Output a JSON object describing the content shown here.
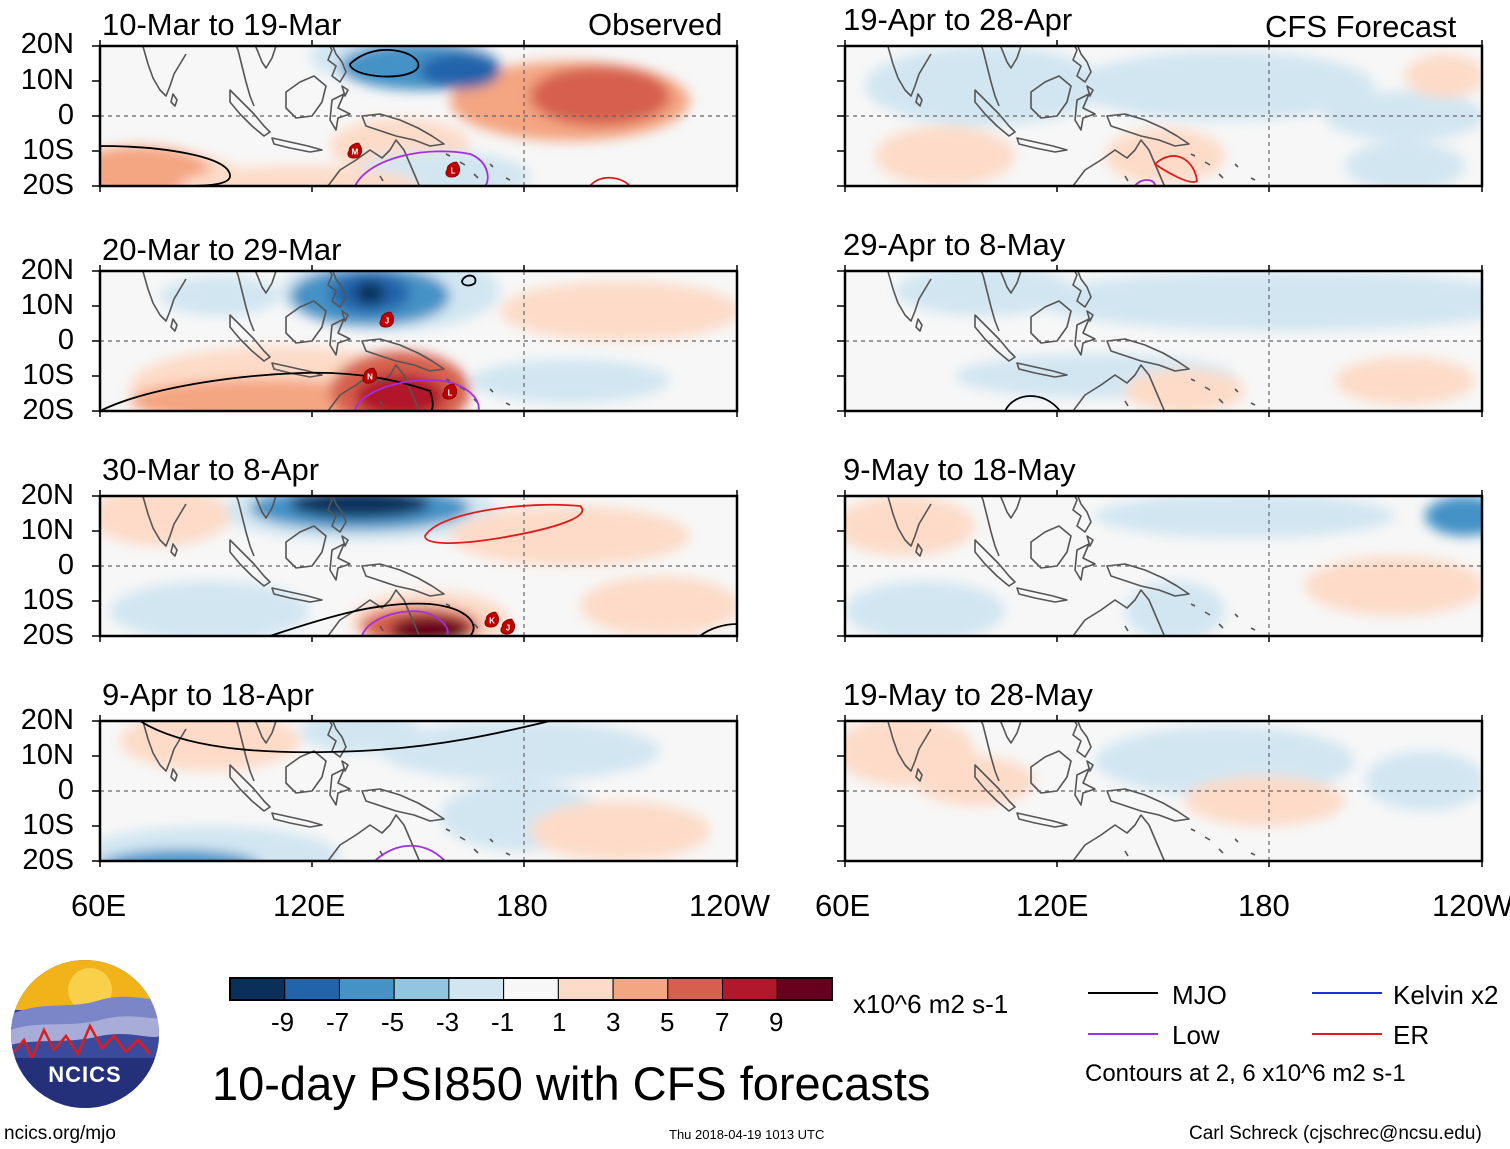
{
  "headers": {
    "observed": "Observed",
    "forecast": "CFS Forecast"
  },
  "panels": [
    {
      "id": "p1",
      "title": "10-Mar to 19-Mar",
      "column": "observed"
    },
    {
      "id": "p2",
      "title": "20-Mar to 29-Mar",
      "column": "observed"
    },
    {
      "id": "p3",
      "title": "30-Mar to 8-Apr",
      "column": "observed"
    },
    {
      "id": "p4",
      "title": "9-Apr to 18-Apr",
      "column": "observed"
    },
    {
      "id": "p5",
      "title": "19-Apr to 28-Apr",
      "column": "forecast"
    },
    {
      "id": "p6",
      "title": "29-Apr to 8-May",
      "column": "forecast"
    },
    {
      "id": "p7",
      "title": "9-May to 18-May",
      "column": "forecast"
    },
    {
      "id": "p8",
      "title": "19-May to 28-May",
      "column": "forecast"
    }
  ],
  "lat_labels": [
    "20N",
    "10N",
    "0",
    "10S",
    "20S"
  ],
  "lon_labels": [
    "60E",
    "120E",
    "180",
    "120W"
  ],
  "colorbar": {
    "colors": [
      "#08305b",
      "#2164ab",
      "#4592c6",
      "#92c5df",
      "#d2e6f2",
      "#f7f7f7",
      "#fddbc8",
      "#f4a582",
      "#d6604d",
      "#b2182b",
      "#67001f"
    ],
    "labels": [
      "-9",
      "-7",
      "-5",
      "-3",
      "-1",
      "1",
      "3",
      "5",
      "7",
      "9"
    ],
    "units": "x10^6 m2 s-1"
  },
  "legend": {
    "items": [
      {
        "label": "MJO",
        "color": "#000000"
      },
      {
        "label": "Kelvin x2",
        "color": "#1f2fd6"
      },
      {
        "label": "Low",
        "color": "#a02fe0"
      },
      {
        "label": "ER",
        "color": "#e01b1b"
      }
    ],
    "contours_note": "Contours at 2, 6 x10^6 m2 s-1"
  },
  "main_title": "10-day PSI850 with CFS forecasts",
  "logo_text": "NCICS",
  "footer": {
    "url": "ncics.org/mjo",
    "timestamp": "Thu 2018-04-19 1013 UTC",
    "credit": "Carl Schreck (cjschrec@ncsu.edu)"
  },
  "storm_markers": [
    {
      "panel": "p1",
      "letter": "M"
    },
    {
      "panel": "p1",
      "letter": "L"
    },
    {
      "panel": "p2",
      "letter": "J"
    },
    {
      "panel": "p2",
      "letter": "N"
    },
    {
      "panel": "p2",
      "letter": "L"
    },
    {
      "panel": "p3",
      "letter": "K"
    },
    {
      "panel": "p3",
      "letter": "J"
    }
  ]
}
